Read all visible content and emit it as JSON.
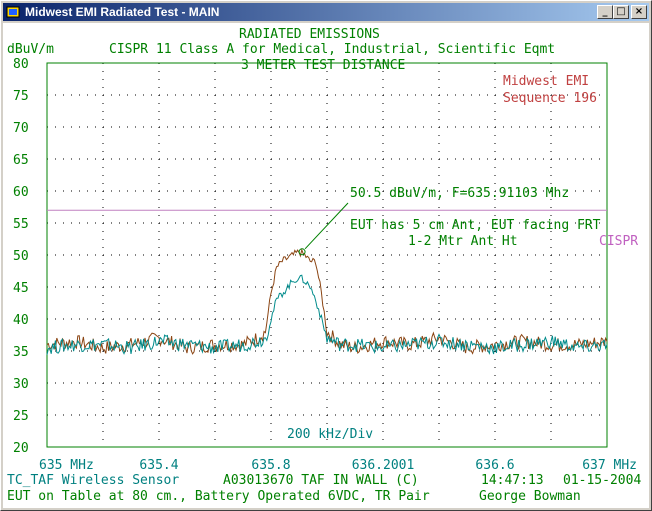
{
  "window": {
    "title": "Midwest EMI Radiated Test - MAIN",
    "controls": [
      "minimize",
      "maximize",
      "close"
    ]
  },
  "header": {
    "line1": "RADIATED EMISSIONS",
    "line2": "CISPR 11 Class A for Medical, Industrial, Scientific Eqmt",
    "line3": "3 METER TEST DISTANCE",
    "unit_label": "dBuV/m"
  },
  "annotations": {
    "company": "Midwest EMI",
    "sequence": "Sequence 196",
    "marker": "50.5 dBuV/m, F=635.91103 Mhz",
    "setup1": "EUT has 5 cm Ant, EUT facing FRT",
    "setup2": "1-2 Mtr Ant Ht",
    "limit_label": "CISPR",
    "span": "200 kHz/Div"
  },
  "footer": {
    "line1_left": "TC_TAF Wireless Sensor",
    "line1_mid": "A03013670 TAF IN WALL (C)",
    "line1_time": "14:47:13",
    "line1_date": "01-15-2004",
    "line2_left": "EUT on Table at 80 cm., Battery Operated 6VDC, TR Pair",
    "line2_right": "George Bowman"
  },
  "chart_data": {
    "type": "line",
    "ylabel": "dBuV/m",
    "ylim": [
      20,
      80
    ],
    "xlim": [
      635.0,
      637.0
    ],
    "y_ticks": [
      "80",
      "75",
      "70",
      "65",
      "60",
      "55",
      "50",
      "45",
      "40",
      "35",
      "30",
      "25",
      "20"
    ],
    "x_ticks": [
      "635 MHz",
      "635.4",
      "635.8",
      "636.2001",
      "636.6",
      "637 MHz"
    ],
    "x_tick_values": [
      635.0,
      635.4,
      635.8,
      636.2,
      636.6,
      637.0
    ],
    "grid": true,
    "limit_line": {
      "name": "CISPR",
      "value": 57,
      "color": "#c080c0"
    },
    "marker": {
      "x": 635.91103,
      "y": 50.5
    },
    "series": [
      {
        "color": "#8b4513",
        "x": [
          635.0,
          635.1,
          635.2,
          635.3,
          635.4,
          635.5,
          635.6,
          635.7,
          635.75,
          635.78,
          635.8,
          635.82,
          635.84,
          635.86,
          635.88,
          635.9,
          635.92,
          635.94,
          635.96,
          635.98,
          636.0,
          636.05,
          636.1,
          636.2,
          636.3,
          636.4,
          636.5,
          636.6,
          636.7,
          636.8,
          636.9,
          637.0
        ],
        "values": [
          36,
          36.5,
          35.5,
          36,
          37,
          35.5,
          36,
          36,
          37,
          38,
          44,
          48,
          49,
          49.5,
          50,
          50.5,
          50,
          49,
          49,
          44,
          38,
          36,
          35.5,
          36.5,
          36,
          37,
          35.5,
          36,
          36.5,
          36,
          36,
          36.5
        ]
      },
      {
        "color": "#008b8b",
        "x": [
          635.0,
          635.1,
          635.2,
          635.3,
          635.4,
          635.5,
          635.6,
          635.7,
          635.75,
          635.78,
          635.8,
          635.82,
          635.84,
          635.86,
          635.88,
          635.9,
          635.92,
          635.94,
          635.96,
          635.98,
          636.0,
          636.05,
          636.1,
          636.2,
          636.3,
          636.4,
          636.5,
          636.6,
          636.7,
          636.8,
          636.9,
          637.0
        ],
        "values": [
          35.5,
          36,
          36,
          35.5,
          36.5,
          36,
          35.5,
          36,
          36.5,
          37,
          40,
          43,
          44,
          45,
          46,
          46.5,
          46,
          45,
          43,
          40,
          37,
          36,
          36,
          35.5,
          36,
          36.5,
          36,
          35.5,
          36,
          36.5,
          35.5,
          36
        ]
      }
    ]
  }
}
